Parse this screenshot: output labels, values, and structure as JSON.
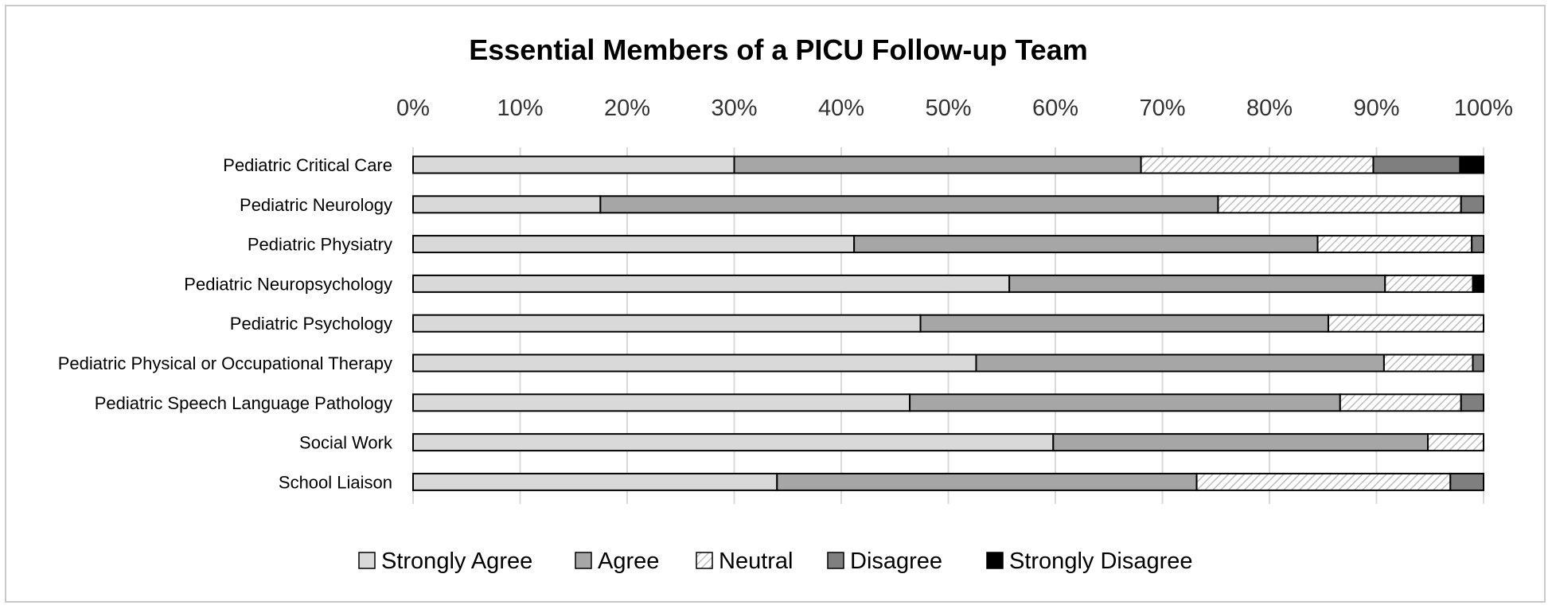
{
  "chart_data": {
    "type": "bar",
    "orientation": "horizontal",
    "stacked": "percent",
    "title": "Essential Members of a PICU Follow-up Team",
    "xlim": [
      0,
      100
    ],
    "x_ticks": [
      "0%",
      "10%",
      "20%",
      "30%",
      "40%",
      "50%",
      "60%",
      "70%",
      "80%",
      "90%",
      "100%"
    ],
    "x_axis_position": "top",
    "grid": "vertical",
    "legend_position": "bottom",
    "categories": [
      "Pediatric Critical Care",
      "Pediatric Neurology",
      "Pediatric Physiatry",
      "Pediatric Neuropsychology",
      "Pediatric Psychology",
      "Pediatric Physical or Occupational Therapy",
      "Pediatric Speech Language Pathology",
      "Social Work",
      "School Liaison"
    ],
    "series": [
      {
        "name": "Strongly Agree",
        "color": "#d9d9d9",
        "pattern": "solid",
        "values": [
          30,
          17.5,
          41.2,
          55.7,
          47.4,
          52.6,
          46.4,
          59.8,
          34
        ]
      },
      {
        "name": "Agree",
        "color": "#a6a6a6",
        "pattern": "solid",
        "values": [
          38,
          57.7,
          43.3,
          35.1,
          38.1,
          38.1,
          40.2,
          35,
          39.2
        ]
      },
      {
        "name": "Neutral",
        "color": "#ffffff",
        "pattern": "diagonal-hatch",
        "values": [
          21.7,
          22.7,
          14.4,
          8.2,
          14.5,
          8.3,
          11.3,
          5.2,
          23.7
        ]
      },
      {
        "name": "Disagree",
        "color": "#7f7f7f",
        "pattern": "solid",
        "values": [
          8.1,
          2.1,
          1.1,
          0,
          0,
          1,
          2.1,
          0,
          3.1
        ]
      },
      {
        "name": "Strongly Disagree",
        "color": "#000000",
        "pattern": "solid",
        "values": [
          2.2,
          0,
          0,
          1,
          0,
          0,
          0,
          0,
          0
        ]
      }
    ]
  }
}
